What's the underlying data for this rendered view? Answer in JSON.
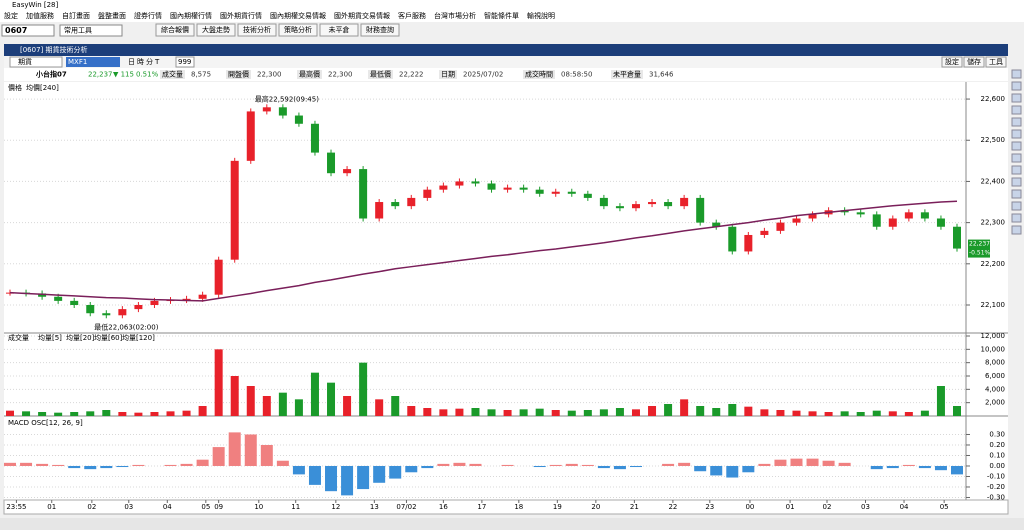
{
  "window": {
    "title": "EasyWin [28]"
  },
  "menu": [
    "設定",
    "加值服務",
    "自訂畫面",
    "盤整畫面",
    "證券行情",
    "國內期權行情",
    "國外期貨行情",
    "國內期權交易情報",
    "國外期貨交易情報",
    "客戶服務",
    "台灣市場分析",
    "智能條件單",
    "輸視說明"
  ],
  "toolbar": {
    "code": "0607",
    "tools": "常用工具",
    "buttons": [
      "綜合報價",
      "大盤走勢",
      "技術分析",
      "策略分析",
      "未平倉",
      "財務查詢"
    ]
  },
  "panel": {
    "title": "[0607] 期貨技術分析",
    "market": "期貨",
    "symbol": "MXF1",
    "periods": [
      "日",
      "時",
      "分",
      "T"
    ],
    "count": "999",
    "actions": [
      "設定",
      "儲存",
      "工具"
    ]
  },
  "quote": {
    "name": "小台指07",
    "price": "22,237",
    "change": "▼ 115",
    "pct": "0.51%",
    "fields": [
      [
        "成交量",
        "8,575"
      ],
      [
        "開盤價",
        "22,300"
      ],
      [
        "最高價",
        "22,300"
      ],
      [
        "最低價",
        "22,222"
      ],
      [
        "日期",
        "2025/07/02"
      ],
      [
        "成交時間",
        "08:58:50"
      ],
      [
        "未平倉量",
        "31,646"
      ]
    ]
  },
  "chart_data": [
    {
      "type": "candlestick",
      "up_color": "#e8212a",
      "down_color": "#1a9a2a",
      "high_label": "最高22,592(09:45)",
      "low_label": "最低22,063(02:00)",
      "last_label": "22,237",
      "last_pct": "-0.51%",
      "series": [
        {
          "name": "價格",
          "values": [
            22130,
            22128,
            22120,
            22110,
            22100,
            22080,
            22075,
            22090,
            22100,
            22110,
            22112,
            22115,
            22125,
            22210,
            22450,
            22570,
            22580,
            22560,
            22540,
            22470,
            22420,
            22430,
            22310,
            22350,
            22340,
            22360,
            22380,
            22390,
            22400,
            22395,
            22380,
            22385,
            22380,
            22370,
            22375,
            22370,
            22360,
            22340,
            22335,
            22345,
            22350,
            22340,
            22360,
            22300,
            22290,
            22230,
            22270,
            22280,
            22300,
            22310,
            22320,
            22330,
            22325,
            22320,
            22290,
            22310,
            22325,
            22310,
            22290,
            22237
          ]
        },
        {
          "name": "均價[240]",
          "color": "#7a1f5a",
          "values": [
            22130,
            22128,
            22126,
            22124,
            22122,
            22120,
            22118,
            22117,
            22115,
            22113,
            22112,
            22111,
            22110,
            22116,
            22122,
            22128,
            22135,
            22141,
            22147,
            22155,
            22161,
            22168,
            22175,
            22181,
            22188,
            22193,
            22198,
            22203,
            22208,
            22213,
            22218,
            22222,
            22227,
            22232,
            22236,
            22241,
            22246,
            22251,
            22257,
            22263,
            22268,
            22274,
            22280,
            22285,
            22290,
            22295,
            22300,
            22306,
            22311,
            22317,
            22321,
            22325,
            22329,
            22333,
            22337,
            22341,
            22344,
            22347,
            22350,
            22352
          ]
        }
      ],
      "ylim": [
        22032,
        22639
      ],
      "yticks": [
        {
          "value": 22600,
          "label": "22,600"
        },
        {
          "value": 22500,
          "label": "22,500"
        },
        {
          "value": 22400,
          "label": "22,400"
        },
        {
          "value": 22300,
          "label": "22,300"
        },
        {
          "value": 22200,
          "label": "22,200"
        },
        {
          "value": 22100,
          "label": "22,100"
        }
      ]
    },
    {
      "type": "bar",
      "series": [
        {
          "name": "成交量",
          "values": [
            800,
            700,
            600,
            500,
            600,
            700,
            900,
            600,
            500,
            600,
            700,
            800,
            1500,
            10000,
            6000,
            4500,
            3000,
            3500,
            2500,
            6500,
            5000,
            3000,
            8000,
            2500,
            3000,
            1500,
            1200,
            1000,
            1100,
            1200,
            1000,
            900,
            1000,
            1100,
            900,
            800,
            900,
            1000,
            1200,
            1000,
            1500,
            1800,
            2500,
            1500,
            1200,
            1800,
            1400,
            1000,
            900,
            800,
            700,
            600,
            700,
            600,
            800,
            700,
            600,
            800,
            4500,
            1500
          ]
        }
      ],
      "averages": [
        {
          "name": "均量[5]",
          "color": "#1a9a2a"
        },
        {
          "name": "均量[20]",
          "color": "#2a7ad8"
        },
        {
          "name": "均量[60]",
          "color": "#2a8a2a"
        },
        {
          "name": "均量[120]",
          "color": "#a02040"
        }
      ],
      "ylim": [
        0,
        12300
      ],
      "yticks": [
        {
          "value": 12000,
          "label": "12,000"
        },
        {
          "value": 10000,
          "label": "10,000"
        },
        {
          "value": 8000,
          "label": "8,000"
        },
        {
          "value": 6000,
          "label": "6,000"
        },
        {
          "value": 4000,
          "label": "4,000"
        },
        {
          "value": 2000,
          "label": "2,000"
        }
      ]
    },
    {
      "type": "bar",
      "title": "MACD OSC[12, 26, 9]",
      "pos_color": "#f08080",
      "neg_color": "#3a8fd8",
      "values": [
        0.03,
        0.03,
        0.02,
        0.01,
        -0.02,
        -0.03,
        -0.02,
        -0.01,
        0.01,
        0.0,
        0.01,
        0.02,
        0.06,
        0.18,
        0.32,
        0.3,
        0.2,
        0.05,
        -0.08,
        -0.18,
        -0.24,
        -0.28,
        -0.22,
        -0.16,
        -0.12,
        -0.06,
        -0.02,
        0.02,
        0.03,
        0.02,
        0.0,
        0.01,
        0.0,
        -0.01,
        0.01,
        0.02,
        0.01,
        -0.02,
        -0.03,
        -0.01,
        0.0,
        0.02,
        0.03,
        -0.05,
        -0.09,
        -0.11,
        -0.06,
        0.02,
        0.06,
        0.07,
        0.07,
        0.05,
        0.03,
        0.0,
        -0.03,
        -0.02,
        0.01,
        -0.02,
        -0.04,
        -0.08
      ],
      "ylim": [
        -0.324,
        0.457
      ],
      "yticks": [
        {
          "value": 0.3,
          "label": "0.30"
        },
        {
          "value": 0.2,
          "label": "0.20"
        },
        {
          "value": 0.1,
          "label": "0.10"
        },
        {
          "value": 0,
          "label": "0.00"
        },
        {
          "value": -0.1,
          "label": "-0.10"
        },
        {
          "value": -0.2,
          "label": "-0.20"
        },
        {
          "value": -0.3,
          "label": "-0.30"
        }
      ],
      "xticks": [
        {
          "value": 0.4,
          "label": "23:55"
        },
        {
          "value": 2.6,
          "label": "01"
        },
        {
          "value": 5.1,
          "label": "02"
        },
        {
          "value": 7.4,
          "label": "03"
        },
        {
          "value": 9.8,
          "label": "04"
        },
        {
          "value": 12.2,
          "label": "05"
        },
        {
          "value": 13.0,
          "label": "09"
        },
        {
          "value": 15.5,
          "label": "10"
        },
        {
          "value": 17.8,
          "label": "11"
        },
        {
          "value": 20.3,
          "label": "12"
        },
        {
          "value": 22.7,
          "label": "13"
        },
        {
          "value": 24.7,
          "label": "07/02"
        },
        {
          "value": 27.0,
          "label": "16"
        },
        {
          "value": 29.4,
          "label": "17"
        },
        {
          "value": 31.7,
          "label": "18"
        },
        {
          "value": 34.1,
          "label": "19"
        },
        {
          "value": 36.5,
          "label": "20"
        },
        {
          "value": 38.9,
          "label": "21"
        },
        {
          "value": 41.3,
          "label": "22"
        },
        {
          "value": 43.6,
          "label": "23"
        },
        {
          "value": 46.1,
          "label": "00"
        },
        {
          "value": 48.6,
          "label": "01"
        },
        {
          "value": 50.9,
          "label": "02"
        },
        {
          "value": 53.3,
          "label": "03"
        },
        {
          "value": 55.7,
          "label": "04"
        },
        {
          "value": 58.2,
          "label": "05"
        }
      ]
    }
  ]
}
